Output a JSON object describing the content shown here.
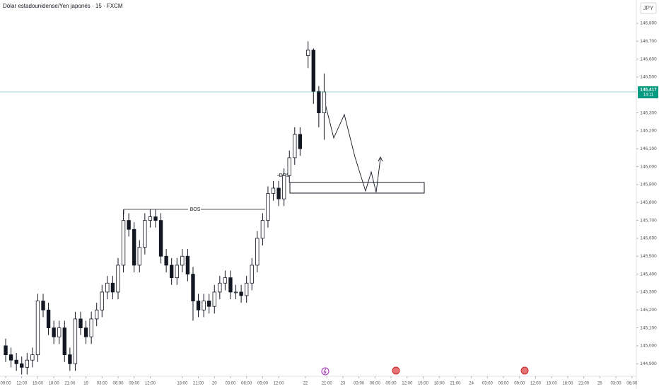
{
  "header": {
    "title": "Dólar estadounidense/Yen japonés · 15 · FXCM",
    "currency": "JPY"
  },
  "chart_data": {
    "type": "candlestick",
    "up_color": "#131722",
    "down_color": "#131722",
    "x": [
      0,
      1,
      2,
      3,
      4,
      5,
      6,
      7,
      8,
      9,
      10,
      11,
      12,
      13,
      14,
      15,
      16,
      17,
      18,
      19,
      20,
      21,
      22,
      23,
      24,
      25,
      26,
      27,
      28,
      29,
      30,
      31,
      32,
      33,
      34,
      35,
      36,
      37,
      38,
      39,
      40,
      41,
      42,
      43,
      44,
      45,
      46,
      47,
      48,
      49,
      50,
      51,
      52,
      53,
      54,
      55,
      56.5,
      57.5,
      58.5,
      59.5
    ],
    "ohlc": [
      [
        145.0,
        145.04,
        144.91,
        144.95
      ],
      [
        144.95,
        144.99,
        144.88,
        144.92
      ],
      [
        144.92,
        144.96,
        144.86,
        144.9
      ],
      [
        144.9,
        144.94,
        144.84,
        144.88
      ],
      [
        144.88,
        144.96,
        144.84,
        144.92
      ],
      [
        144.92,
        144.99,
        144.88,
        144.95
      ],
      [
        144.95,
        145.29,
        144.91,
        145.25
      ],
      [
        145.25,
        145.29,
        145.16,
        145.2
      ],
      [
        145.2,
        145.24,
        145.06,
        145.1
      ],
      [
        145.1,
        145.14,
        145.01,
        145.05
      ],
      [
        145.05,
        145.14,
        145.01,
        145.1
      ],
      [
        145.1,
        145.14,
        144.91,
        144.95
      ],
      [
        144.95,
        144.99,
        144.86,
        144.9
      ],
      [
        144.9,
        145.19,
        144.86,
        145.15
      ],
      [
        145.15,
        145.19,
        145.06,
        145.1
      ],
      [
        145.1,
        145.14,
        145.01,
        145.05
      ],
      [
        145.05,
        145.19,
        145.01,
        145.15
      ],
      [
        145.15,
        145.24,
        145.11,
        145.2
      ],
      [
        145.2,
        145.34,
        145.16,
        145.3
      ],
      [
        145.3,
        145.39,
        145.26,
        145.35
      ],
      [
        145.35,
        145.39,
        145.26,
        145.3
      ],
      [
        145.3,
        145.49,
        145.26,
        145.45
      ],
      [
        145.45,
        145.76,
        145.41,
        145.7
      ],
      [
        145.7,
        145.74,
        145.61,
        145.65
      ],
      [
        145.65,
        145.69,
        145.41,
        145.45
      ],
      [
        145.45,
        145.59,
        145.41,
        145.55
      ],
      [
        145.55,
        145.74,
        145.51,
        145.7
      ],
      [
        145.7,
        145.76,
        145.66,
        145.72
      ],
      [
        145.72,
        145.76,
        145.66,
        145.7
      ],
      [
        145.7,
        145.74,
        145.46,
        145.5
      ],
      [
        145.5,
        145.54,
        145.41,
        145.45
      ],
      [
        145.45,
        145.49,
        145.34,
        145.38
      ],
      [
        145.38,
        145.49,
        145.34,
        145.45
      ],
      [
        145.45,
        145.54,
        145.41,
        145.5
      ],
      [
        145.5,
        145.54,
        145.36,
        145.4
      ],
      [
        145.4,
        145.44,
        145.14,
        145.25
      ],
      [
        145.25,
        145.29,
        145.16,
        145.2
      ],
      [
        145.2,
        145.29,
        145.16,
        145.25
      ],
      [
        145.25,
        145.29,
        145.18,
        145.22
      ],
      [
        145.22,
        145.34,
        145.18,
        145.3
      ],
      [
        145.3,
        145.39,
        145.26,
        145.35
      ],
      [
        145.35,
        145.42,
        145.31,
        145.38
      ],
      [
        145.38,
        145.42,
        145.26,
        145.3
      ],
      [
        145.3,
        145.34,
        145.26,
        145.3
      ],
      [
        145.3,
        145.34,
        145.24,
        145.28
      ],
      [
        145.28,
        145.39,
        145.24,
        145.35
      ],
      [
        145.35,
        145.49,
        145.31,
        145.45
      ],
      [
        145.45,
        145.64,
        145.41,
        145.6
      ],
      [
        145.6,
        145.74,
        145.56,
        145.7
      ],
      [
        145.7,
        145.89,
        145.66,
        145.85
      ],
      [
        145.85,
        145.92,
        145.81,
        145.88
      ],
      [
        145.88,
        145.92,
        145.78,
        145.82
      ],
      [
        145.82,
        145.99,
        145.78,
        145.95
      ],
      [
        145.95,
        146.09,
        145.91,
        146.05
      ],
      [
        146.05,
        146.22,
        146.01,
        146.18
      ],
      [
        146.18,
        146.22,
        146.06,
        146.1
      ],
      [
        146.62,
        146.7,
        146.55,
        146.65
      ],
      [
        146.65,
        146.66,
        146.35,
        146.42
      ],
      [
        146.42,
        146.45,
        146.22,
        146.3
      ],
      [
        146.3,
        146.52,
        146.15,
        146.417
      ]
    ],
    "xlim": [
      -1.06,
      117.83
    ],
    "xticks": [
      {
        "value": 0,
        "label": "09:00"
      },
      {
        "value": 3,
        "label": "12:00"
      },
      {
        "value": 6,
        "label": "15:00"
      },
      {
        "value": 9,
        "label": "18:00"
      },
      {
        "value": 12,
        "label": "21:00"
      },
      {
        "value": 15,
        "label": "19"
      },
      {
        "value": 18,
        "label": "03:00"
      },
      {
        "value": 21,
        "label": "06:00"
      },
      {
        "value": 24,
        "label": "09:00"
      },
      {
        "value": 27,
        "label": "12:00"
      },
      {
        "value": 33,
        "label": "18:00"
      },
      {
        "value": 36,
        "label": "21:00"
      },
      {
        "value": 39,
        "label": "20"
      },
      {
        "value": 42,
        "label": "03:00"
      },
      {
        "value": 45,
        "label": "06:00"
      },
      {
        "value": 48,
        "label": "09:00"
      },
      {
        "value": 51,
        "label": "12:00"
      },
      {
        "value": 56,
        "label": "22"
      },
      {
        "value": 60,
        "label": "21:00"
      },
      {
        "value": 63,
        "label": "23"
      },
      {
        "value": 66,
        "label": "03:00"
      },
      {
        "value": 69,
        "label": "06:00"
      },
      {
        "value": 72,
        "label": "09:00"
      },
      {
        "value": 75,
        "label": "12:00"
      },
      {
        "value": 78,
        "label": "15:00"
      },
      {
        "value": 81,
        "label": "18:00"
      },
      {
        "value": 84,
        "label": "21:00"
      },
      {
        "value": 87,
        "label": "24"
      },
      {
        "value": 90,
        "label": "03:00"
      },
      {
        "value": 93,
        "label": "06:00"
      },
      {
        "value": 96,
        "label": "09:00"
      },
      {
        "value": 99,
        "label": "12:00"
      },
      {
        "value": 102,
        "label": "15:00"
      },
      {
        "value": 105,
        "label": "18:00"
      },
      {
        "value": 108,
        "label": "21:00"
      },
      {
        "value": 111,
        "label": "25"
      },
      {
        "value": 114,
        "label": "03:00"
      },
      {
        "value": 117,
        "label": "06:00"
      }
    ],
    "ylim": [
      144.83,
      146.93
    ],
    "yticks": [
      {
        "value": 144.9,
        "label": "144,900"
      },
      {
        "value": 145.0,
        "label": "145,000"
      },
      {
        "value": 145.1,
        "label": "145,100"
      },
      {
        "value": 145.2,
        "label": "145,200"
      },
      {
        "value": 145.3,
        "label": "145,300"
      },
      {
        "value": 145.4,
        "label": "145,400"
      },
      {
        "value": 145.5,
        "label": "145,500"
      },
      {
        "value": 145.6,
        "label": "145,600"
      },
      {
        "value": 145.7,
        "label": "145,700"
      },
      {
        "value": 145.8,
        "label": "145,800"
      },
      {
        "value": 145.9,
        "label": "145,900"
      },
      {
        "value": 146.0,
        "label": "146,000"
      },
      {
        "value": 146.1,
        "label": "146,100"
      },
      {
        "value": 146.2,
        "label": "146,200"
      },
      {
        "value": 146.3,
        "label": "146,300"
      },
      {
        "value": 146.5,
        "label": "146,500"
      },
      {
        "value": 146.6,
        "label": "146,600"
      },
      {
        "value": 146.7,
        "label": "146,700"
      },
      {
        "value": 146.8,
        "label": "146,800"
      }
    ],
    "grid": false,
    "last_price": {
      "value": 146.417,
      "label": "146,417",
      "countdown": "14:11",
      "color": "#089981"
    },
    "annotations": [
      "BOS",
      "BOS"
    ]
  }
}
